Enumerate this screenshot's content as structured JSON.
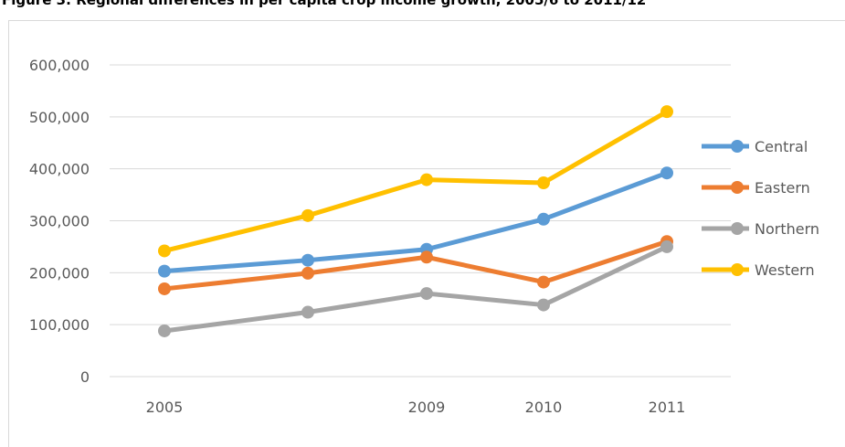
{
  "chart_data": {
    "type": "line",
    "title": "Figure 3: Regional differences in per capita crop income growth, 2005/6 to 2011/12",
    "xlabel": "",
    "ylabel": "",
    "categories": [
      "2005",
      "",
      "2009",
      "2010",
      "2011"
    ],
    "ylim": [
      0,
      600000
    ],
    "y_ticks": [
      "0",
      "100,000",
      "200,000",
      "300,000",
      "400,000",
      "500,000",
      "600,000"
    ],
    "grid": true,
    "legend_position": "right",
    "series": [
      {
        "name": "Central",
        "color": "#5B9BD5",
        "values": [
          203000,
          224000,
          245000,
          303000,
          392000
        ]
      },
      {
        "name": "Eastern",
        "color": "#ED7D31",
        "values": [
          169000,
          199000,
          230000,
          182000,
          260000
        ]
      },
      {
        "name": "Northern",
        "color": "#A5A5A5",
        "values": [
          88000,
          124000,
          160000,
          138000,
          250000
        ]
      },
      {
        "name": "Western",
        "color": "#FFC000",
        "values": [
          242000,
          310000,
          379000,
          373000,
          510000
        ]
      }
    ]
  }
}
